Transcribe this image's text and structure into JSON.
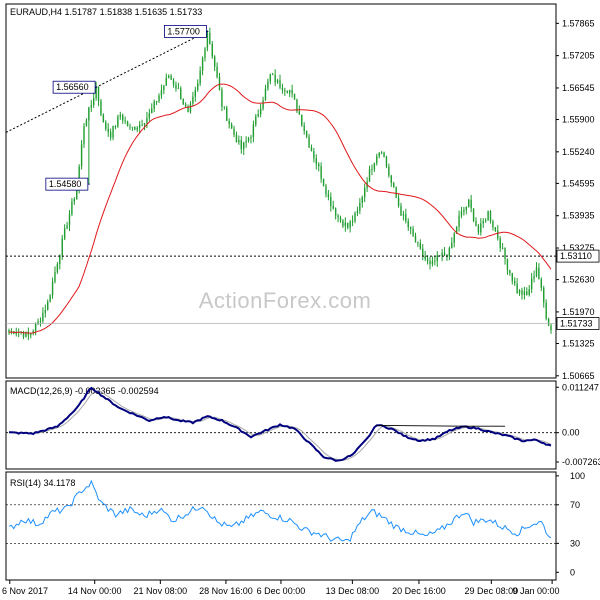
{
  "chart_data": {
    "type": "candlestick",
    "symbol": "EURAUD",
    "timeframe": "H4",
    "ohlc_header": {
      "open": "1.51787",
      "high": "1.51838",
      "low": "1.51635",
      "close": "1.51733"
    },
    "watermark": "ActionForex.com",
    "x_ticks": [
      "6 Nov 2017",
      "14 Nov 00:00",
      "21 Nov 08:00",
      "28 Nov 16:00",
      "6 Dec 00:00",
      "13 Dec 08:00",
      "20 Dec 16:00",
      "29 Dec 08:00",
      "9 Jan 00:00"
    ],
    "price_axis": {
      "ticks": [
        "1.57865",
        "1.57205",
        "1.56545",
        "1.55900",
        "1.55240",
        "1.54595",
        "1.53935",
        "1.53275",
        "1.52630",
        "1.51970",
        "1.51325",
        "1.50665"
      ],
      "tick_values": [
        1.57865,
        1.57205,
        1.56545,
        1.559,
        1.5524,
        1.54595,
        1.53935,
        1.53275,
        1.5263,
        1.5197,
        1.51325,
        1.50665
      ],
      "ylim": [
        1.5062,
        1.5826
      ]
    },
    "annotations": [
      {
        "label": "1.57700",
        "value": 1.577,
        "bar": 82
      },
      {
        "label": "1.56560",
        "value": 1.5656,
        "bar": 36
      },
      {
        "label": "1.54580",
        "value": 1.5458,
        "bar": 33
      }
    ],
    "horizontal_levels": [
      {
        "label": "1.53110",
        "value": 1.5311
      },
      {
        "label": "1.51733",
        "value": 1.51733
      }
    ],
    "price_keypoints": [
      [
        0,
        1.5155
      ],
      [
        3,
        1.516
      ],
      [
        8,
        1.5148
      ],
      [
        12,
        1.5175
      ],
      [
        16,
        1.5215
      ],
      [
        20,
        1.53
      ],
      [
        24,
        1.538
      ],
      [
        28,
        1.545
      ],
      [
        31,
        1.558
      ],
      [
        34,
        1.562
      ],
      [
        36,
        1.5656
      ],
      [
        39,
        1.558
      ],
      [
        42,
        1.556
      ],
      [
        46,
        1.56
      ],
      [
        50,
        1.557
      ],
      [
        54,
        1.558
      ],
      [
        58,
        1.56
      ],
      [
        62,
        1.564
      ],
      [
        66,
        1.568
      ],
      [
        70,
        1.565
      ],
      [
        74,
        1.56
      ],
      [
        78,
        1.566
      ],
      [
        82,
        1.577
      ],
      [
        85,
        1.57
      ],
      [
        88,
        1.562
      ],
      [
        92,
        1.557
      ],
      [
        96,
        1.553
      ],
      [
        100,
        1.556
      ],
      [
        104,
        1.562
      ],
      [
        108,
        1.568
      ],
      [
        112,
        1.566
      ],
      [
        116,
        1.565
      ],
      [
        120,
        1.56
      ],
      [
        124,
        1.554
      ],
      [
        128,
        1.549
      ],
      [
        132,
        1.543
      ],
      [
        136,
        1.539
      ],
      [
        140,
        1.537
      ],
      [
        144,
        1.54
      ],
      [
        148,
        1.547
      ],
      [
        152,
        1.552
      ],
      [
        154,
        1.553
      ],
      [
        158,
        1.546
      ],
      [
        162,
        1.54
      ],
      [
        166,
        1.536
      ],
      [
        170,
        1.532
      ],
      [
        174,
        1.529
      ],
      [
        178,
        1.531
      ],
      [
        182,
        1.532
      ],
      [
        186,
        1.539
      ],
      [
        190,
        1.542
      ],
      [
        194,
        1.536
      ],
      [
        198,
        1.54
      ],
      [
        202,
        1.535
      ],
      [
        206,
        1.529
      ],
      [
        210,
        1.524
      ],
      [
        214,
        1.523
      ],
      [
        216,
        1.526
      ],
      [
        218,
        1.529
      ],
      [
        220,
        1.524
      ],
      [
        222,
        1.519
      ],
      [
        224,
        1.516
      ]
    ],
    "macd": {
      "title": "MACD(12,26,9) -0.003365 -0.002594",
      "ticks": [
        "0.011247",
        "0.00",
        "-0.007263"
      ],
      "tick_values": [
        0.011247,
        0.0,
        -0.007263
      ],
      "ylim": [
        -0.009,
        0.0128
      ],
      "keypoints": [
        [
          0,
          0.0
        ],
        [
          10,
          -0.0002
        ],
        [
          20,
          0.0015
        ],
        [
          28,
          0.006
        ],
        [
          34,
          0.0112
        ],
        [
          40,
          0.0085
        ],
        [
          46,
          0.006
        ],
        [
          52,
          0.0045
        ],
        [
          58,
          0.003
        ],
        [
          64,
          0.004
        ],
        [
          70,
          0.003
        ],
        [
          76,
          0.0025
        ],
        [
          82,
          0.004
        ],
        [
          88,
          0.003
        ],
        [
          94,
          0.0012
        ],
        [
          100,
          -0.001
        ],
        [
          106,
          0.0005
        ],
        [
          112,
          0.002
        ],
        [
          118,
          0.001
        ],
        [
          124,
          -0.0025
        ],
        [
          130,
          -0.006
        ],
        [
          136,
          -0.007
        ],
        [
          142,
          -0.0055
        ],
        [
          148,
          -0.0015
        ],
        [
          152,
          0.002
        ],
        [
          158,
          0.001
        ],
        [
          164,
          -0.001
        ],
        [
          170,
          -0.002
        ],
        [
          176,
          -0.0015
        ],
        [
          182,
          0.0005
        ],
        [
          188,
          0.0015
        ],
        [
          194,
          0.001
        ],
        [
          200,
          0.0
        ],
        [
          206,
          -0.0008
        ],
        [
          212,
          -0.002
        ],
        [
          218,
          -0.0018
        ],
        [
          224,
          -0.0033
        ]
      ],
      "signal_lag": 4
    },
    "rsi": {
      "title": "RSI(14) 34.1178",
      "ticks": [
        "100",
        "70",
        "30",
        "0"
      ],
      "tick_values": [
        100,
        70,
        30,
        0
      ],
      "ylim": [
        -8,
        104
      ],
      "keypoints": [
        [
          0,
          45
        ],
        [
          6,
          55
        ],
        [
          12,
          50
        ],
        [
          18,
          62
        ],
        [
          24,
          66
        ],
        [
          30,
          85
        ],
        [
          34,
          92
        ],
        [
          38,
          72
        ],
        [
          44,
          60
        ],
        [
          50,
          65
        ],
        [
          56,
          58
        ],
        [
          62,
          66
        ],
        [
          68,
          54
        ],
        [
          74,
          62
        ],
        [
          80,
          70
        ],
        [
          86,
          52
        ],
        [
          92,
          46
        ],
        [
          98,
          55
        ],
        [
          104,
          63
        ],
        [
          110,
          58
        ],
        [
          116,
          54
        ],
        [
          122,
          44
        ],
        [
          128,
          40
        ],
        [
          134,
          34
        ],
        [
          140,
          32
        ],
        [
          146,
          54
        ],
        [
          150,
          63
        ],
        [
          154,
          58
        ],
        [
          160,
          47
        ],
        [
          166,
          42
        ],
        [
          172,
          37
        ],
        [
          178,
          43
        ],
        [
          184,
          55
        ],
        [
          188,
          63
        ],
        [
          192,
          52
        ],
        [
          198,
          55
        ],
        [
          204,
          47
        ],
        [
          210,
          41
        ],
        [
          216,
          50
        ],
        [
          220,
          52
        ],
        [
          224,
          34
        ]
      ]
    },
    "colors": {
      "up_candle": "#1f9d2f",
      "down_candle": "#1f9d2f",
      "moving_average": "#e0191b",
      "macd_main": "#00007f",
      "macd_signal": "#a9a9a9",
      "rsi_line": "#1e90ff",
      "grid_level": "#000000"
    }
  }
}
